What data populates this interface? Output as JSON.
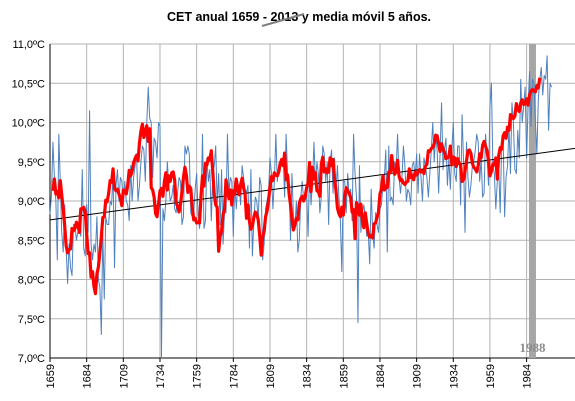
{
  "chart_data": {
    "type": "line",
    "title_parts": {
      "prefix": "CET  anual 1659 - ",
      "struck": "2013",
      "suffix": " y media móvil 5 años."
    },
    "ylim": [
      7.0,
      11.0
    ],
    "xlim": [
      1659,
      2017
    ],
    "y_ticks": [
      "7,0ºC",
      "7,5ºC",
      "8,0ºC",
      "8,5ºC",
      "9,0ºC",
      "9,5ºC",
      "10,0ºC",
      "10,5ºC",
      "11,0ºC"
    ],
    "x_ticks": [
      "1659",
      "1684",
      "1709",
      "1734",
      "1759",
      "1784",
      "1809",
      "1834",
      "1859",
      "1884",
      "1909",
      "1934",
      "1959",
      "1984"
    ],
    "grid": true,
    "colors": {
      "annual": "#4f81bd",
      "moving_average": "#ff0000",
      "trend": "#000000",
      "marker_band": "#a6a6a6",
      "grid": "#b3b3b3"
    },
    "annotation": {
      "label": "1988",
      "year": 1988
    },
    "trend": {
      "x": [
        1659,
        2017
      ],
      "y": [
        8.76,
        9.67
      ]
    },
    "series": [
      {
        "key": "annual",
        "x_start": 1659,
        "values": [
          8.83,
          9.08,
          9.75,
          9.3,
          9.0,
          8.25,
          9.85,
          9.25,
          8.6,
          8.35,
          8.95,
          8.4,
          7.95,
          8.45,
          8.15,
          8.05,
          8.7,
          8.7,
          8.5,
          8.6,
          8.65,
          8.55,
          9.4,
          8.4,
          8.3,
          8.95,
          8.6,
          10.15,
          8.45,
          8.25,
          8.45,
          8.35,
          8.8,
          8.0,
          7.9,
          7.3,
          8.6,
          7.75,
          8.8,
          8.7,
          8.7,
          9.0,
          8.95,
          9.35,
          8.15,
          9.2,
          9.4,
          9.0,
          9.3,
          9.25,
          8.95,
          9.25,
          9.0,
          8.95,
          8.75,
          9.45,
          9.0,
          9.3,
          9.45,
          9.6,
          9.0,
          9.2,
          9.5,
          9.7,
          9.65,
          9.25,
          10.0,
          10.45,
          10.05,
          10.0,
          9.3,
          9.8,
          9.75,
          9.55,
          10.0,
          9.95,
          7.0,
          8.9,
          8.75,
          9.0,
          9.5,
          9.2,
          9.0,
          9.05,
          9.2,
          8.9,
          8.85,
          9.1,
          9.3,
          9.25,
          8.7,
          8.8,
          9.7,
          9.6,
          9.7,
          9.6,
          8.85,
          8.8,
          8.85,
          9.15,
          9.35,
          8.8,
          8.65,
          8.95,
          9.85,
          8.65,
          8.75,
          9.55,
          9.25,
          9.4,
          8.75,
          9.35,
          9.45,
          9.7,
          8.95,
          9.35,
          8.7,
          9.4,
          8.45,
          8.85,
          8.85,
          9.85,
          9.1,
          9.3,
          9.25,
          8.55,
          9.25,
          8.9,
          9.2,
          9.2,
          8.95,
          9.45,
          9.3,
          9.15,
          9.1,
          9.2,
          8.4,
          9.4,
          8.3,
          8.75,
          9.05,
          9.0,
          8.75,
          9.3,
          9.2,
          8.25,
          8.45,
          8.9,
          9.0,
          9.1,
          9.55,
          9.35,
          8.9,
          9.25,
          9.85,
          9.25,
          9.45,
          9.45,
          9.5,
          9.55,
          9.05,
          9.85,
          9.35,
          9.3,
          8.5,
          9.35,
          8.8,
          8.65,
          9.0,
          8.35,
          8.5,
          9.05,
          9.25,
          9.0,
          9.05,
          9.1,
          8.55,
          9.45,
          8.95,
          9.25,
          9.75,
          9.2,
          9.5,
          9.35,
          8.85,
          9.05,
          9.7,
          9.6,
          9.25,
          9.5,
          8.7,
          9.5,
          9.65,
          9.1,
          9.55,
          9.15,
          9.45,
          9.05,
          8.75,
          8.1,
          9.25,
          9.25,
          8.85,
          9.35,
          9.05,
          9.15,
          8.75,
          9.85,
          9.35,
          9.05,
          7.45,
          9.45,
          8.6,
          8.85,
          8.95,
          8.8,
          8.55,
          8.6,
          8.2,
          9.15,
          8.6,
          8.4,
          8.85,
          8.7,
          8.6,
          8.9,
          8.95,
          9.2,
          9.3,
          9.65,
          8.35,
          9.7,
          9.0,
          9.05,
          8.95,
          9.5,
          9.4,
          9.85,
          9.3,
          9.1,
          9.3,
          9.7,
          9.45,
          9.0,
          9.15,
          9.1,
          8.95,
          9.45,
          9.5,
          9.3,
          9.6,
          9.1,
          9.6,
          9.3,
          9.0,
          9.55,
          9.45,
          9.3,
          9.05,
          9.35,
          9.65,
          10.0,
          9.5,
          9.85,
          9.65,
          9.1,
          9.6,
          10.25,
          9.4,
          9.65,
          9.8,
          9.2,
          9.55,
          9.15,
          9.65,
          10.0,
          9.35,
          9.25,
          9.7,
          9.7,
          8.95,
          10.1,
          9.5,
          8.6,
          9.75,
          9.3,
          9.05,
          9.2,
          9.45,
          9.5,
          9.65,
          9.85,
          9.75,
          9.25,
          9.55,
          9.05,
          9.1,
          9.85,
          9.6,
          9.2,
          10.2,
          10.5,
          9.45,
          9.35,
          8.9,
          9.25,
          9.4,
          8.85,
          9.75,
          9.8,
          8.8,
          9.3,
          9.45,
          9.95,
          9.35,
          10.25,
          10.0,
          9.4,
          9.35,
          9.9,
          9.55,
          10.55,
          10.0,
          10.2,
          10.45,
          9.55,
          10.2,
          10.65,
          9.95,
          10.55,
          10.5,
          10.0,
          9.6,
          10.3,
          10.55,
          10.7,
          10.35,
          10.6,
          10.55,
          10.85,
          9.9,
          10.5,
          10.45
        ]
      },
      {
        "key": "moving_average",
        "x_start": 1661,
        "values": [
          9.13,
          9.28,
          9.09,
          9.12,
          9.04,
          9.26,
          9.08,
          8.9,
          8.69,
          8.43,
          8.34,
          8.38,
          8.39,
          8.65,
          8.62,
          8.65,
          8.73,
          8.7,
          8.6,
          8.9,
          8.9,
          8.92,
          8.86,
          8.58,
          8.33,
          8.34,
          8.03,
          8.1,
          7.91,
          7.82,
          8.07,
          8.16,
          8.34,
          8.54,
          8.79,
          8.8,
          9.01,
          8.99,
          9.1,
          9.26,
          9.24,
          9.41,
          9.16,
          9.13,
          9.15,
          9.09,
          9.03,
          8.94,
          9.14,
          9.13,
          9.09,
          9.2,
          9.39,
          9.32,
          9.38,
          9.49,
          9.54,
          9.58,
          9.51,
          9.74,
          9.89,
          9.98,
          9.81,
          9.88,
          9.96,
          9.76,
          9.92,
          9.17,
          9.14,
          9.05,
          8.84,
          8.8,
          8.96,
          9.13,
          9.16,
          9.06,
          9.25,
          9.36,
          9.14,
          9.32,
          9.25,
          9.36,
          9.37,
          9.27,
          8.98,
          8.93,
          8.86,
          8.96,
          9.12,
          9.3,
          9.43,
          9.33,
          9.11,
          9.19,
          9.16,
          8.92,
          8.76,
          8.78,
          8.72,
          8.73,
          8.72,
          9.07,
          9.32,
          9.19,
          9.48,
          9.46,
          9.55,
          9.52,
          9.64,
          9.37,
          9.08,
          8.95,
          8.92,
          8.36,
          8.55,
          8.62,
          8.83,
          8.89,
          9.27,
          9.14,
          9.03,
          9.14,
          8.95,
          9.13,
          9.09,
          9.28,
          9.15,
          9.08,
          9.21,
          9.29,
          9.17,
          9.09,
          8.78,
          8.95,
          8.74,
          8.64,
          8.68,
          8.79,
          8.86,
          8.83,
          8.76,
          8.56,
          8.31,
          8.54,
          8.61,
          8.8,
          8.87,
          9.0,
          9.18,
          9.31,
          9.26,
          9.36,
          9.33,
          9.32,
          9.37,
          9.48,
          9.53,
          9.45,
          9.61,
          9.27,
          9.33,
          9.1,
          8.95,
          8.77,
          8.63,
          8.7,
          8.78,
          8.76,
          8.97,
          9.03,
          9.06,
          9.0,
          9.05,
          9.17,
          9.23,
          9.49,
          9.12,
          9.43,
          9.28,
          9.36,
          9.13,
          9.12,
          9.06,
          9.47,
          9.56,
          9.37,
          9.41,
          9.36,
          9.37,
          9.55,
          9.45,
          9.53,
          9.28,
          9.14,
          8.91,
          8.84,
          8.8,
          8.92,
          8.82,
          9.06,
          9.17,
          9.13,
          9.1,
          9.05,
          8.86,
          8.89,
          8.52,
          8.98,
          8.93,
          8.82,
          8.96,
          8.75,
          8.66,
          8.85,
          8.71,
          8.59,
          8.54,
          8.56,
          8.53,
          8.71,
          8.72,
          8.79,
          8.86,
          9.09,
          9.15,
          9.32,
          9.14,
          9.19,
          9.17,
          9.37,
          9.36,
          9.58,
          9.42,
          9.34,
          9.37,
          9.52,
          9.32,
          9.26,
          9.27,
          9.23,
          9.21,
          9.24,
          9.25,
          9.41,
          9.3,
          9.33,
          9.27,
          9.37,
          9.33,
          9.37,
          9.4,
          9.37,
          9.38,
          9.35,
          9.44,
          9.47,
          9.64,
          9.63,
          9.67,
          9.68,
          9.73,
          9.84,
          9.83,
          9.73,
          9.63,
          9.73,
          9.66,
          9.62,
          9.54,
          9.55,
          9.57,
          9.7,
          9.46,
          9.56,
          9.55,
          9.44,
          9.54,
          9.48,
          9.46,
          9.25,
          9.27,
          9.38,
          9.51,
          9.64,
          9.65,
          9.61,
          9.48,
          9.43,
          9.41,
          9.37,
          9.45,
          9.6,
          9.55,
          9.71,
          9.76,
          9.7,
          9.64,
          9.52,
          9.32,
          9.38,
          9.47,
          9.46,
          9.55,
          9.28,
          9.58,
          9.68,
          9.66,
          9.83,
          9.87,
          9.8,
          9.94,
          9.9,
          10.1,
          10.08,
          10.05,
          10.08,
          10.24,
          10.17,
          10.14,
          10.25,
          10.29,
          10.23,
          10.24,
          10.3,
          10.22,
          10.35,
          10.4,
          10.42,
          10.4,
          10.39,
          10.47,
          10.44,
          10.57
        ]
      }
    ]
  }
}
